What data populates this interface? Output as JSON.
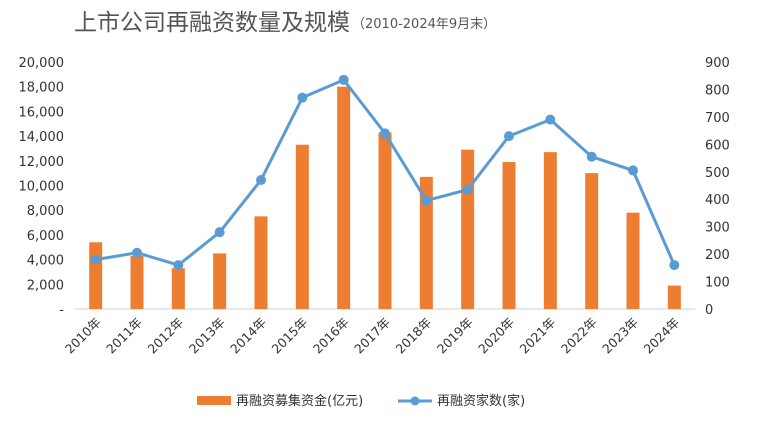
{
  "chart_data": {
    "type": "bar",
    "title": "上市公司再融资数量及规模",
    "subtitle": "（2010-2024年9月末）",
    "categories": [
      "2010年",
      "2011年",
      "2012年",
      "2013年",
      "2014年",
      "2015年",
      "2016年",
      "2017年",
      "2018年",
      "2019年",
      "2020年",
      "2021年",
      "2022年",
      "2023年",
      "2024年"
    ],
    "left_ticks": [
      "-",
      "2,000",
      "4,000",
      "6,000",
      "8,000",
      "10,000",
      "12,000",
      "14,000",
      "16,000",
      "18,000",
      "20,000"
    ],
    "right_ticks": [
      "0",
      "100",
      "200",
      "300",
      "400",
      "500",
      "600",
      "700",
      "800",
      "900"
    ],
    "ylim_left": [
      0,
      20000
    ],
    "ylim_right": [
      0,
      900
    ],
    "series": [
      {
        "name": "再融资募集资金(亿元)",
        "type": "bar",
        "axis": "left",
        "color": "#ED7D31",
        "values": [
          5400,
          4300,
          3300,
          4500,
          7500,
          13300,
          18000,
          14300,
          10700,
          12900,
          11900,
          12700,
          11000,
          7800,
          1900
        ]
      },
      {
        "name": "再融资家数(家)",
        "type": "line",
        "axis": "right",
        "color": "#5B9BD5",
        "values": [
          180,
          205,
          160,
          280,
          470,
          770,
          835,
          640,
          395,
          435,
          630,
          690,
          555,
          505,
          160
        ]
      }
    ],
    "grid": false,
    "legend": "bottom"
  }
}
